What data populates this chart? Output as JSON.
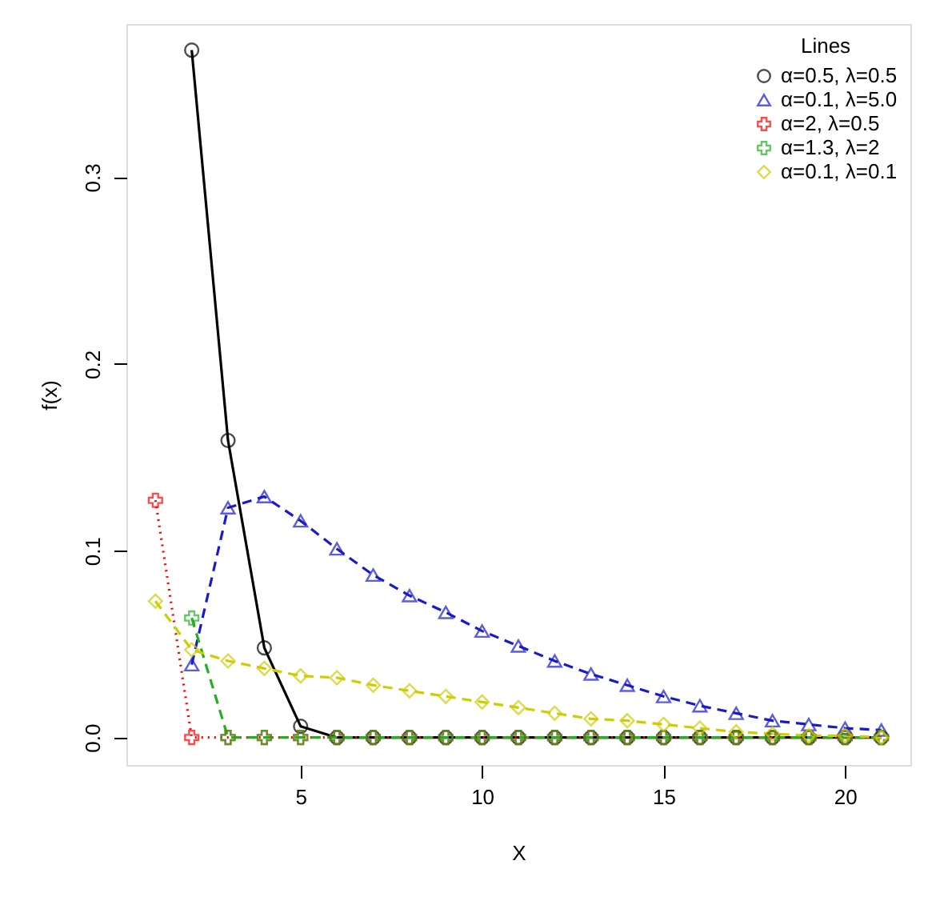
{
  "chart_data": {
    "type": "line",
    "xlabel": "X",
    "ylabel": "f(x)",
    "legend_title": "Lines",
    "x": [
      1,
      2,
      3,
      4,
      5,
      6,
      7,
      8,
      9,
      10,
      11,
      12,
      13,
      14,
      15,
      16,
      17,
      18,
      19,
      20,
      21
    ],
    "series": [
      {
        "name": "α=0.5, λ=0.5",
        "color": "#000000",
        "marker": "circle",
        "line_style": "solid",
        "values": [
          null,
          0.368,
          0.159,
          0.048,
          0.006,
          0,
          0,
          0,
          0,
          0,
          0,
          0,
          0,
          0,
          0,
          0,
          0,
          0,
          0,
          0,
          0
        ]
      },
      {
        "name": "α=0.1, λ=5.0",
        "color": "#1a1acd",
        "marker": "triangle",
        "line_style": "dashed",
        "values": [
          null,
          0.039,
          0.123,
          0.129,
          0.116,
          0.101,
          0.087,
          0.076,
          0.067,
          0.057,
          0.049,
          0.041,
          0.034,
          0.028,
          0.022,
          0.017,
          0.013,
          0.009,
          0.007,
          0.005,
          0.004
        ]
      },
      {
        "name": "α=2, λ=0.5",
        "color": "#ff0000",
        "marker": "cross",
        "line_style": "dotted",
        "values": [
          0.127,
          0,
          0,
          0,
          0,
          0,
          0,
          0,
          0,
          0,
          0,
          0,
          0,
          0,
          0,
          0,
          0,
          0,
          0,
          0,
          0
        ]
      },
      {
        "name": "α=1.3, λ=2",
        "color": "#22b022",
        "marker": "cross",
        "line_style": "dashed",
        "values": [
          null,
          0.064,
          0,
          0,
          0,
          0,
          0,
          0,
          0,
          0,
          0,
          0,
          0,
          0,
          0,
          0,
          0,
          0,
          0,
          0,
          0
        ]
      },
      {
        "name": "α=0.1, λ=0.1",
        "color": "#cdcd00",
        "marker": "diamond",
        "line_style": "dashed",
        "values": [
          0.073,
          0.047,
          0.041,
          0.037,
          0.033,
          0.032,
          0.028,
          0.025,
          0.022,
          0.019,
          0.016,
          0.013,
          0.01,
          0.009,
          0.007,
          0.005,
          0.003,
          0.002,
          0.001,
          0.001,
          0
        ]
      }
    ],
    "xlim": [
      0.2,
      21.8
    ],
    "ylim": [
      -0.0147,
      0.382
    ],
    "xticks": [
      5,
      10,
      15,
      20
    ],
    "yticks": [
      {
        "value": 0,
        "label": "0.0"
      },
      0.1,
      0.2,
      0.3
    ],
    "legend": "top right",
    "grid": false
  }
}
